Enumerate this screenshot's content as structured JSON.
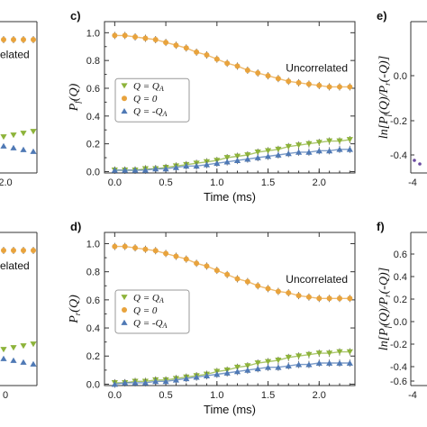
{
  "colors": {
    "q_plus": "#8db33a",
    "q_zero": "#e8a33d",
    "q_minus": "#4f79b5",
    "axis": "#333333"
  },
  "center_panels": {
    "xlabel": "Time (ms)",
    "annotation": "Uncorrelated",
    "legend": [
      "Q = Q_A",
      "Q = 0",
      "Q = -Q_A"
    ]
  },
  "right_panels": {
    "ylabel_top": "ln[P_f(Q)/P_r(-Q)]",
    "ylabel_bottom": "ln[P_f(Q)/P_r(-Q)]"
  },
  "left_panels": {
    "annotation_fragment": "elated"
  },
  "chart_data": [
    {
      "panel": "c)",
      "type": "scatter",
      "ylabel": "P_f(Q)",
      "xlabel": "Time (ms)",
      "xlim": [
        -0.1,
        2.35
      ],
      "ylim": [
        -0.01,
        1.08
      ],
      "xticks": [
        0.0,
        0.5,
        1.0,
        1.5,
        2.0
      ],
      "yticks": [
        0.0,
        0.2,
        0.4,
        0.6,
        0.8,
        1.0
      ],
      "x": [
        0.0,
        0.1,
        0.2,
        0.3,
        0.4,
        0.5,
        0.6,
        0.7,
        0.8,
        0.9,
        1.0,
        1.1,
        1.2,
        1.3,
        1.4,
        1.5,
        1.6,
        1.7,
        1.8,
        1.9,
        2.0,
        2.1,
        2.2,
        2.3
      ],
      "series": [
        {
          "name": "Q = Q_A",
          "marker": "triangle-down",
          "values": [
            0.01,
            0.01,
            0.01,
            0.02,
            0.02,
            0.03,
            0.04,
            0.05,
            0.06,
            0.07,
            0.08,
            0.1,
            0.11,
            0.12,
            0.14,
            0.15,
            0.16,
            0.18,
            0.19,
            0.2,
            0.21,
            0.22,
            0.22,
            0.23
          ]
        },
        {
          "name": "Q = 0",
          "marker": "circle",
          "values": [
            0.98,
            0.98,
            0.97,
            0.96,
            0.95,
            0.93,
            0.91,
            0.89,
            0.86,
            0.84,
            0.81,
            0.78,
            0.76,
            0.73,
            0.71,
            0.69,
            0.67,
            0.65,
            0.64,
            0.63,
            0.62,
            0.61,
            0.61,
            0.61
          ]
        },
        {
          "name": "Q = -Q_A",
          "marker": "triangle-up",
          "values": [
            0.01,
            0.01,
            0.01,
            0.01,
            0.02,
            0.02,
            0.03,
            0.04,
            0.04,
            0.05,
            0.06,
            0.07,
            0.08,
            0.09,
            0.1,
            0.11,
            0.12,
            0.13,
            0.14,
            0.14,
            0.15,
            0.15,
            0.16,
            0.16
          ]
        }
      ]
    },
    {
      "panel": "d)",
      "type": "scatter",
      "ylabel": "P_r(Q)",
      "xlabel": "Time (ms)",
      "xlim": [
        -0.1,
        2.35
      ],
      "ylim": [
        -0.01,
        1.08
      ],
      "xticks": [
        0.0,
        0.5,
        1.0,
        1.5,
        2.0
      ],
      "yticks": [
        0.0,
        0.2,
        0.4,
        0.6,
        0.8,
        1.0
      ],
      "x": [
        0.0,
        0.1,
        0.2,
        0.3,
        0.4,
        0.5,
        0.6,
        0.7,
        0.8,
        0.9,
        1.0,
        1.1,
        1.2,
        1.3,
        1.4,
        1.5,
        1.6,
        1.7,
        1.8,
        1.9,
        2.0,
        2.1,
        2.2,
        2.3
      ],
      "series": [
        {
          "name": "Q = Q_A",
          "marker": "triangle-down",
          "values": [
            0.01,
            0.01,
            0.02,
            0.02,
            0.03,
            0.03,
            0.04,
            0.05,
            0.06,
            0.07,
            0.09,
            0.1,
            0.12,
            0.13,
            0.15,
            0.16,
            0.17,
            0.19,
            0.2,
            0.21,
            0.22,
            0.22,
            0.23,
            0.23
          ]
        },
        {
          "name": "Q = 0",
          "marker": "circle",
          "values": [
            0.98,
            0.98,
            0.97,
            0.96,
            0.95,
            0.93,
            0.91,
            0.89,
            0.86,
            0.84,
            0.81,
            0.78,
            0.75,
            0.73,
            0.7,
            0.68,
            0.66,
            0.65,
            0.63,
            0.62,
            0.61,
            0.61,
            0.61,
            0.61
          ]
        },
        {
          "name": "Q = -Q_A",
          "marker": "triangle-up",
          "values": [
            0.0,
            0.01,
            0.01,
            0.01,
            0.02,
            0.02,
            0.03,
            0.04,
            0.05,
            0.06,
            0.07,
            0.08,
            0.09,
            0.1,
            0.11,
            0.12,
            0.12,
            0.13,
            0.14,
            0.14,
            0.15,
            0.15,
            0.15,
            0.15
          ]
        }
      ]
    },
    {
      "panel": "e)",
      "type": "scatter",
      "partial": true,
      "yticks": [
        0.0,
        -0.2,
        -0.4
      ],
      "ytick_labels": [
        "0.0",
        "-0.2",
        "-0.4"
      ],
      "xtick_labels": [
        "-4"
      ]
    },
    {
      "panel": "f)",
      "type": "scatter",
      "partial": true,
      "yticks": [
        0.6,
        0.4,
        0.2,
        0.0,
        -0.2,
        -0.4,
        -0.6
      ],
      "ytick_labels": [
        "0.6",
        "0.4",
        "0.2",
        "0.0",
        "-0.2",
        "-0.4",
        "-0.6"
      ],
      "xtick_labels": [
        "-4"
      ]
    },
    {
      "panel": "left-top",
      "type": "scatter",
      "partial": true,
      "xtick_labels": [
        "2.0"
      ],
      "annotation": "related"
    },
    {
      "panel": "left-bottom",
      "type": "scatter",
      "partial": true,
      "xtick_labels": [
        "0"
      ],
      "annotation": "related"
    }
  ]
}
